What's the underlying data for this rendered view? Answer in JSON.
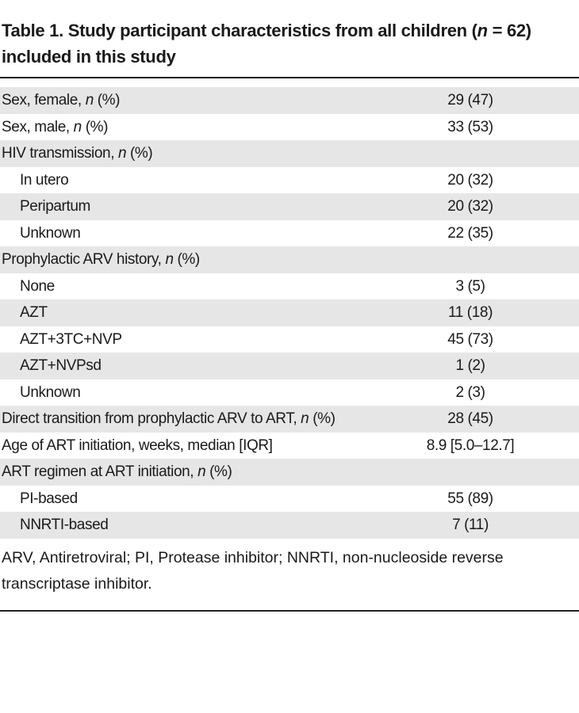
{
  "title": [
    "Table 1. Study participant characteristics from all children (",
    {
      "italic": "n"
    },
    " = 62) included in this study"
  ],
  "rows": [
    {
      "label": [
        "Sex, female, ",
        {
          "italic": "n"
        },
        " (%)"
      ],
      "value": "29 (47)"
    },
    {
      "label": [
        "Sex, male, ",
        {
          "italic": "n"
        },
        " (%)"
      ],
      "value": "33 (53)"
    },
    {
      "label": [
        "HIV transmission, ",
        {
          "italic": "n"
        },
        " (%)"
      ],
      "children": [
        {
          "label": [
            "In utero"
          ],
          "value": "20 (32)"
        },
        {
          "label": [
            "Peripartum"
          ],
          "value": "20 (32)"
        },
        {
          "label": [
            "Unknown"
          ],
          "value": "22 (35)"
        }
      ]
    },
    {
      "label": [
        "Prophylactic ARV history, ",
        {
          "italic": "n"
        },
        " (%)"
      ],
      "children": [
        {
          "label": [
            "None"
          ],
          "value": "3 (5)"
        },
        {
          "label": [
            "AZT"
          ],
          "value": "11 (18)"
        },
        {
          "label": [
            "AZT+3TC+NVP"
          ],
          "value": "45 (73)"
        },
        {
          "label": [
            "AZT+NVPsd"
          ],
          "value": "1 (2)"
        },
        {
          "label": [
            "Unknown"
          ],
          "value": "2 (3)"
        }
      ]
    },
    {
      "label": [
        "Direct transition from prophylactic ARV to ART, ",
        {
          "italic": "n"
        },
        " (%)"
      ],
      "value": "28 (45)"
    },
    {
      "label": [
        "Age of ART initiation, weeks, median [IQR]"
      ],
      "value": "8.9 [5.0–12.7]"
    },
    {
      "label": [
        "ART regimen at ART initiation, ",
        {
          "italic": "n"
        },
        " (%)"
      ],
      "children": [
        {
          "label": [
            "PI-based"
          ],
          "value": "55 (89)"
        },
        {
          "label": [
            "NNRTI-based"
          ],
          "value": "7 (11)"
        }
      ]
    }
  ],
  "footnote": "ARV, Antiretroviral; PI, Protease inhibitor; NNRTI, non-nucleoside reverse transcriptase inhibitor."
}
